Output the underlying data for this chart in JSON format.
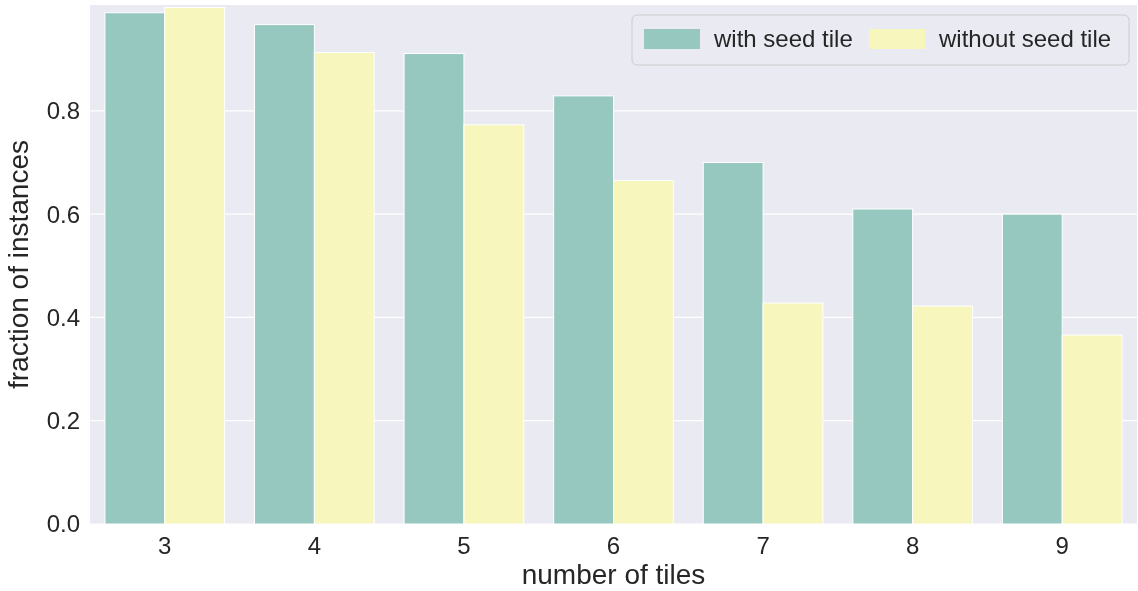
{
  "chart_data": {
    "type": "bar",
    "xlabel": "number of tiles",
    "ylabel": "fraction of instances",
    "categories": [
      "3",
      "4",
      "5",
      "6",
      "7",
      "8",
      "9"
    ],
    "series": [
      {
        "name": "with seed tile",
        "color": "#96c8bf",
        "values": [
          0.99,
          0.967,
          0.911,
          0.829,
          0.7,
          0.61,
          0.6
        ]
      },
      {
        "name": "without seed tile",
        "color": "#f6f6bd",
        "values": [
          1.0,
          0.913,
          0.773,
          0.665,
          0.428,
          0.422,
          0.366
        ]
      }
    ],
    "ylim": [
      0,
      1.005
    ],
    "yticks": [
      {
        "value": 0,
        "label": "0.0"
      },
      {
        "value": 0.2,
        "label": "0.2"
      },
      {
        "value": 0.4,
        "label": "0.4"
      },
      {
        "value": 0.6,
        "label": "0.6"
      },
      {
        "value": 0.8,
        "label": "0.8"
      }
    ],
    "grid": "y",
    "legend": "top right"
  }
}
